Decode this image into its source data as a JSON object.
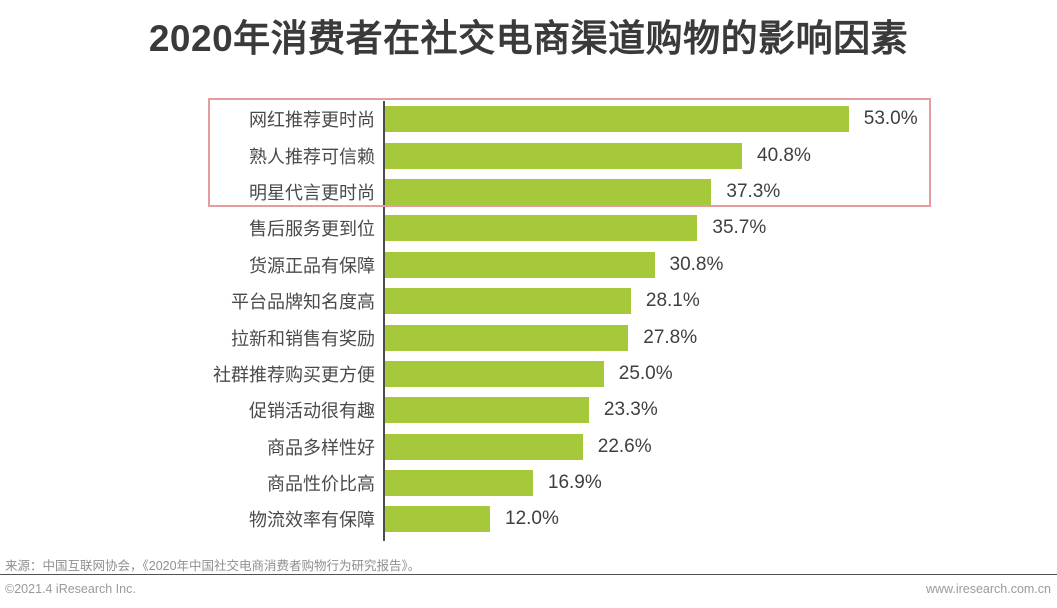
{
  "title": "2020年消费者在社交电商渠道购物的影响因素",
  "chart_data": {
    "type": "bar",
    "orientation": "horizontal",
    "title": "2020年消费者在社交电商渠道购物的影响因素",
    "categories": [
      "网红推荐更时尚",
      "熟人推荐可信赖",
      "明星代言更时尚",
      "售后服务更到位",
      "货源正品有保障",
      "平台品牌知名度高",
      "拉新和销售有奖励",
      "社群推荐购买更方便",
      "促销活动很有趣",
      "商品多样性好",
      "商品性价比高",
      "物流效率有保障"
    ],
    "values": [
      53.0,
      40.8,
      37.3,
      35.7,
      30.8,
      28.1,
      27.8,
      25.0,
      23.3,
      22.6,
      16.9,
      12.0
    ],
    "value_labels": [
      "53.0%",
      "40.8%",
      "37.3%",
      "35.7%",
      "30.8%",
      "28.1%",
      "27.8%",
      "25.0%",
      "23.3%",
      "22.6%",
      "16.9%",
      "12.0%"
    ],
    "xlabel": "",
    "ylabel": "",
    "xlim": [
      0,
      62
    ],
    "grid": false,
    "legend": null,
    "bar_color": "#a6c93c",
    "axis_color": "#4c4c4c",
    "highlight": {
      "categories": [
        "网红推荐更时尚",
        "熟人推荐可信赖",
        "明星代言更时尚"
      ],
      "row_count": 3,
      "border_color": "#e59c9c"
    }
  },
  "footer": {
    "source": "来源：中国互联网协会，《2020年中国社交电商消费者购物行为研究报告》。",
    "copyright": "©2021.4 iResearch Inc.",
    "website": "www.iresearch.com.cn"
  }
}
